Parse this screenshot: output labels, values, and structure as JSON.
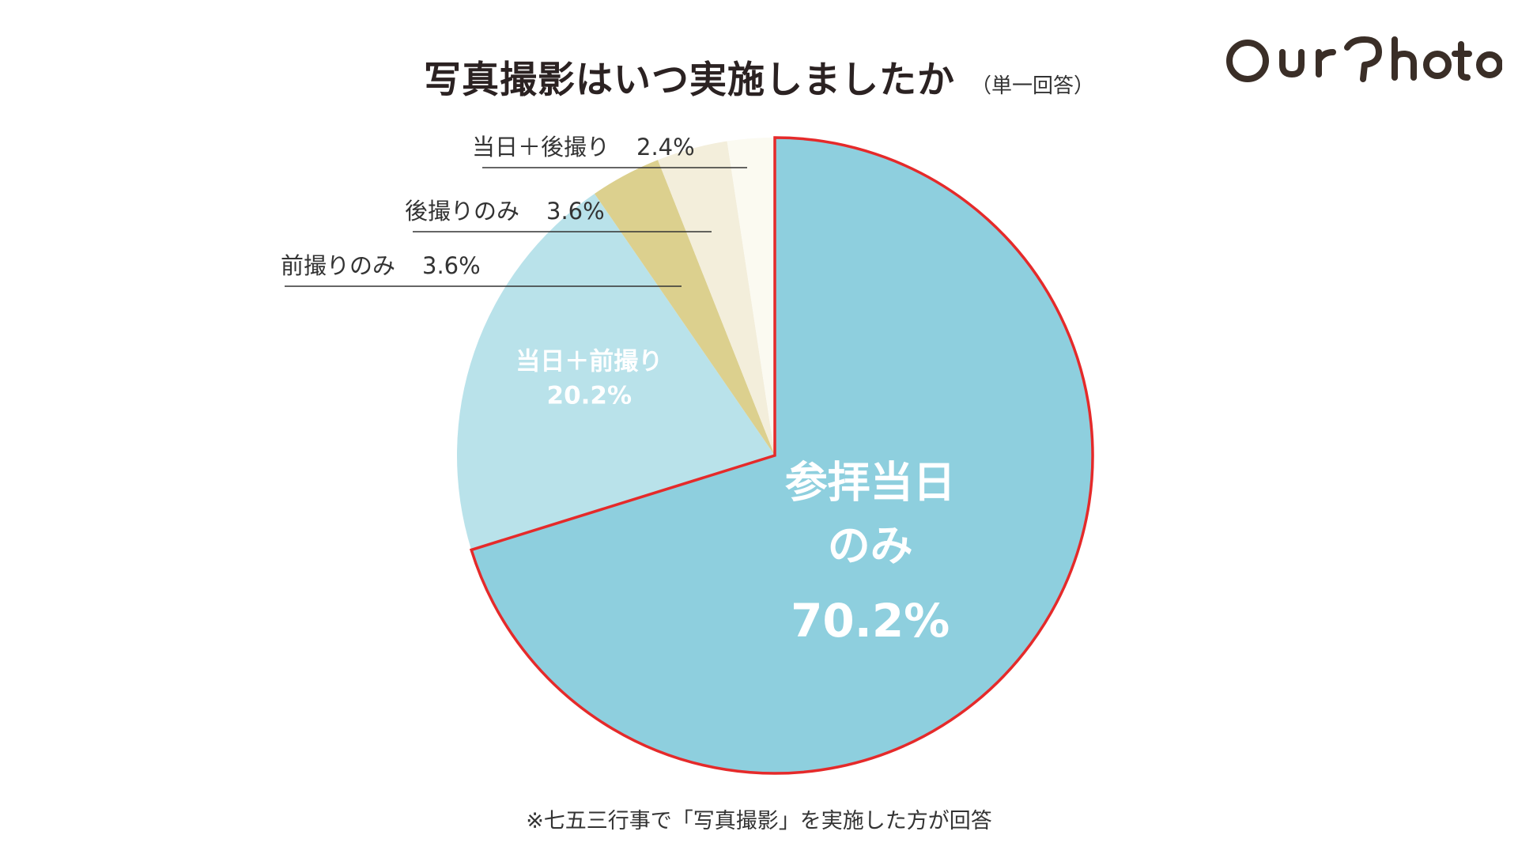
{
  "title": "写真撮影はいつ実施しましたか",
  "subtitle": "（単一回答）",
  "brand": "OurPhoto",
  "footnote": "※七五三行事で「写真撮影」を実施した方が回答",
  "chart_data": {
    "type": "pie",
    "unit": "%",
    "start_angle_deg": 0,
    "direction": "clockwise",
    "slices": [
      {
        "label": "参拝当日のみ",
        "label_lines": [
          "参拝当日",
          "のみ"
        ],
        "value": 70.2,
        "display": "70.2%",
        "color": "#8ecfde",
        "highlight": true,
        "label_placement": "inside-large"
      },
      {
        "label": "当日＋前撮り",
        "label_lines": [
          "当日＋前撮り"
        ],
        "value": 20.2,
        "display": "20.2%",
        "color": "#b9e2ea",
        "highlight": false,
        "label_placement": "inside"
      },
      {
        "label": "前撮りのみ",
        "label_lines": [
          "前撮りのみ"
        ],
        "value": 3.6,
        "display": "3.6%",
        "color": "#dcd08e",
        "highlight": false,
        "label_placement": "outside"
      },
      {
        "label": "後撮りのみ",
        "label_lines": [
          "後撮りのみ"
        ],
        "value": 3.6,
        "display": "3.6%",
        "color": "#f3eedb",
        "highlight": false,
        "label_placement": "outside"
      },
      {
        "label": "当日＋後撮り",
        "label_lines": [
          "当日＋後撮り"
        ],
        "value": 2.4,
        "display": "2.4%",
        "color": "#fbfaf1",
        "highlight": false,
        "label_placement": "outside"
      }
    ],
    "highlight_color": "#e52a2a",
    "inside_label_color": "#ffffff",
    "outside_label_color": "#333333"
  }
}
